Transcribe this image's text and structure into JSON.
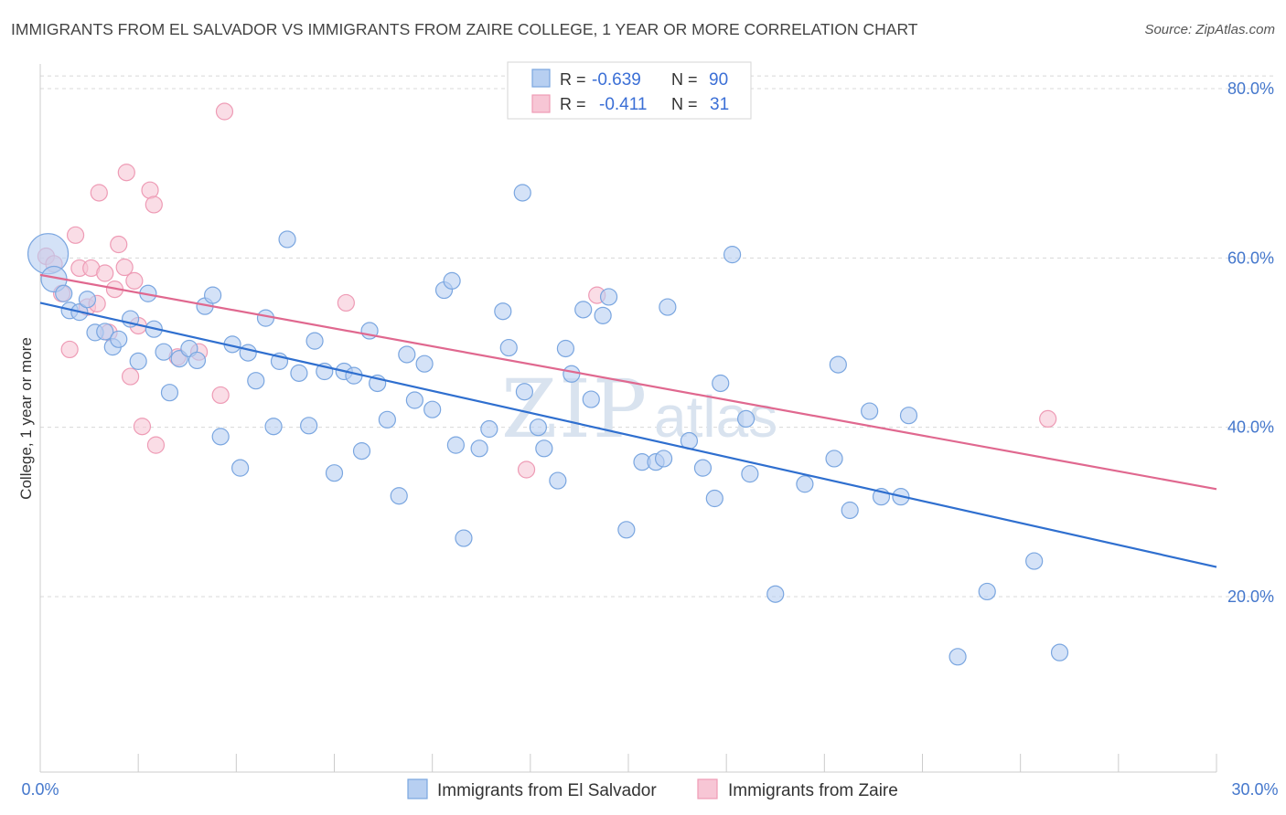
{
  "title": "IMMIGRANTS FROM EL SALVADOR VS IMMIGRANTS FROM ZAIRE COLLEGE, 1 YEAR OR MORE CORRELATION CHART",
  "source": "Source: ZipAtlas.com",
  "watermark": {
    "zip": "ZIP",
    "atlas": "atlas"
  },
  "legend": {
    "r_label": "R =",
    "n_label": "N =",
    "rows": [
      {
        "r": "-0.639",
        "n": "90"
      },
      {
        "r": "-0.411",
        "n": "31"
      }
    ]
  },
  "bottom_legend": [
    "Immigrants from El Salvador",
    "Immigrants from Zaire"
  ],
  "colors": {
    "blue": "#7aa6e0",
    "blue_fill": "#b7cff1",
    "blue_line": "#2f6fcf",
    "pink": "#ee9bb5",
    "pink_fill": "#f7c6d5",
    "pink_line": "#e0688f",
    "tick_label": "#4477cc",
    "grid": "#d8d8d8"
  },
  "chart_data": {
    "type": "scatter",
    "title": "IMMIGRANTS FROM EL SALVADOR VS IMMIGRANTS FROM ZAIRE COLLEGE, 1 YEAR OR MORE CORRELATION CHART",
    "xlabel": "",
    "ylabel": "College, 1 year or more",
    "xlim": [
      0,
      30
    ],
    "ylim": [
      0,
      84
    ],
    "x_tick_labels": [
      "0.0%",
      "30.0%"
    ],
    "y_ticks": [
      20,
      40,
      60,
      80
    ],
    "y_tick_labels": [
      "20.0%",
      "40.0%",
      "60.0%",
      "80.0%"
    ],
    "grid": true,
    "legend_position": "top-center",
    "series": [
      {
        "name": "Immigrants from El Salvador",
        "r": -0.639,
        "n": 90,
        "trend": {
          "x": [
            0,
            30
          ],
          "y": [
            54.7,
            23.5
          ]
        },
        "points": [
          [
            0.2,
            60.5,
            22
          ],
          [
            0.35,
            57.5,
            14
          ],
          [
            0.6,
            55.8,
            9
          ],
          [
            0.75,
            53.8,
            9
          ],
          [
            1.0,
            53.6,
            9
          ],
          [
            1.2,
            55.1,
            9
          ],
          [
            1.4,
            51.2,
            9
          ],
          [
            1.65,
            51.3,
            9
          ],
          [
            1.85,
            49.5,
            9
          ],
          [
            2.0,
            50.4,
            9
          ],
          [
            2.3,
            52.8,
            9
          ],
          [
            2.5,
            47.8,
            9
          ],
          [
            2.75,
            55.8,
            9
          ],
          [
            2.9,
            51.6,
            9
          ],
          [
            3.15,
            48.9,
            9
          ],
          [
            3.3,
            44.1,
            9
          ],
          [
            3.55,
            48.1,
            9
          ],
          [
            3.8,
            49.3,
            9
          ],
          [
            4.0,
            47.9,
            9
          ],
          [
            4.2,
            54.3,
            9
          ],
          [
            4.4,
            55.6,
            9
          ],
          [
            4.6,
            38.9,
            9
          ],
          [
            4.9,
            49.8,
            9
          ],
          [
            5.1,
            35.2,
            9
          ],
          [
            5.3,
            48.8,
            9
          ],
          [
            5.5,
            45.5,
            9
          ],
          [
            5.75,
            52.9,
            9
          ],
          [
            5.95,
            40.1,
            9
          ],
          [
            6.1,
            47.8,
            9
          ],
          [
            6.3,
            62.2,
            9
          ],
          [
            6.6,
            46.4,
            9
          ],
          [
            6.85,
            40.2,
            9
          ],
          [
            7.0,
            50.2,
            9
          ],
          [
            7.25,
            46.6,
            9
          ],
          [
            7.5,
            34.6,
            9
          ],
          [
            7.75,
            46.6,
            9
          ],
          [
            8.0,
            46.1,
            9
          ],
          [
            8.2,
            37.2,
            9
          ],
          [
            8.4,
            51.4,
            9
          ],
          [
            8.6,
            45.2,
            9
          ],
          [
            8.85,
            40.9,
            9
          ],
          [
            9.15,
            31.9,
            9
          ],
          [
            9.35,
            48.6,
            9
          ],
          [
            9.55,
            43.2,
            9
          ],
          [
            9.8,
            47.5,
            9
          ],
          [
            10.0,
            42.1,
            9
          ],
          [
            10.3,
            56.2,
            9
          ],
          [
            10.5,
            57.3,
            9
          ],
          [
            10.6,
            37.9,
            9
          ],
          [
            10.8,
            26.9,
            9
          ],
          [
            11.2,
            37.5,
            9
          ],
          [
            11.45,
            39.8,
            9
          ],
          [
            11.8,
            53.7,
            9
          ],
          [
            11.95,
            49.4,
            9
          ],
          [
            12.3,
            67.7,
            9
          ],
          [
            12.35,
            44.2,
            9
          ],
          [
            12.7,
            40.0,
            9
          ],
          [
            12.85,
            37.5,
            9
          ],
          [
            13.2,
            33.7,
            9
          ],
          [
            13.4,
            49.3,
            9
          ],
          [
            13.55,
            46.3,
            9
          ],
          [
            13.85,
            53.9,
            9
          ],
          [
            14.05,
            43.3,
            9
          ],
          [
            14.35,
            53.2,
            9
          ],
          [
            14.5,
            55.4,
            9
          ],
          [
            14.95,
            27.9,
            9
          ],
          [
            15.35,
            35.9,
            9
          ],
          [
            15.7,
            35.9,
            9
          ],
          [
            15.9,
            36.3,
            9
          ],
          [
            16.0,
            54.2,
            9
          ],
          [
            16.55,
            38.4,
            9
          ],
          [
            16.9,
            35.2,
            9
          ],
          [
            17.2,
            31.6,
            9
          ],
          [
            17.35,
            45.2,
            9
          ],
          [
            17.65,
            60.4,
            9
          ],
          [
            18.0,
            41.0,
            9
          ],
          [
            18.1,
            34.5,
            9
          ],
          [
            18.75,
            20.3,
            9
          ],
          [
            19.5,
            33.3,
            9
          ],
          [
            20.25,
            36.3,
            9
          ],
          [
            20.35,
            47.4,
            9
          ],
          [
            20.65,
            30.2,
            9
          ],
          [
            21.15,
            41.9,
            9
          ],
          [
            21.45,
            31.8,
            9
          ],
          [
            21.95,
            31.8,
            9
          ],
          [
            22.15,
            41.4,
            9
          ],
          [
            23.4,
            12.9,
            9
          ],
          [
            24.15,
            20.6,
            9
          ],
          [
            25.35,
            24.2,
            9
          ],
          [
            26.0,
            13.4,
            9
          ]
        ]
      },
      {
        "name": "Immigrants from Zaire",
        "r": -0.411,
        "n": 31,
        "trend": {
          "x": [
            0,
            30
          ],
          "y": [
            58.0,
            32.7
          ]
        },
        "points": [
          [
            0.15,
            60.2,
            9
          ],
          [
            0.35,
            59.3,
            9
          ],
          [
            0.55,
            55.8,
            9
          ],
          [
            0.75,
            49.2,
            9
          ],
          [
            0.9,
            62.7,
            9
          ],
          [
            1.0,
            58.8,
            9
          ],
          [
            1.2,
            54.2,
            9
          ],
          [
            1.3,
            58.8,
            9
          ],
          [
            1.45,
            54.6,
            9
          ],
          [
            1.5,
            67.7,
            9
          ],
          [
            1.65,
            58.2,
            9
          ],
          [
            1.75,
            51.2,
            9
          ],
          [
            1.9,
            56.3,
            9
          ],
          [
            2.0,
            61.6,
            9
          ],
          [
            2.15,
            58.9,
            9
          ],
          [
            2.2,
            70.1,
            9
          ],
          [
            2.3,
            46.0,
            9
          ],
          [
            2.4,
            57.3,
            9
          ],
          [
            2.5,
            52.0,
            9
          ],
          [
            2.6,
            40.1,
            9
          ],
          [
            2.8,
            68.0,
            9
          ],
          [
            2.9,
            66.3,
            9
          ],
          [
            2.95,
            37.9,
            9
          ],
          [
            3.5,
            48.3,
            9
          ],
          [
            4.05,
            48.9,
            9
          ],
          [
            4.6,
            43.8,
            9
          ],
          [
            4.7,
            77.3,
            9
          ],
          [
            7.8,
            54.7,
            9
          ],
          [
            12.4,
            35.0,
            9
          ],
          [
            14.2,
            55.6,
            9
          ],
          [
            25.7,
            41.0,
            9
          ]
        ]
      }
    ]
  }
}
